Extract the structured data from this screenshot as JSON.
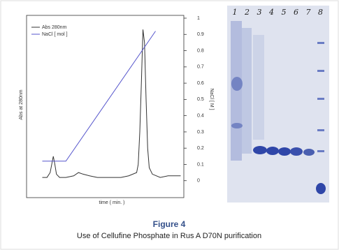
{
  "chart_data": {
    "type": "line",
    "x_label": "time ( min. )",
    "y_label": "Abs at 280nm",
    "y2_label": "NaCl [ M ]",
    "xlim": [
      0,
      100
    ],
    "ylim": [
      -0.1,
      1
    ],
    "yticks": [
      0,
      0.1,
      0.2,
      0.3,
      0.4,
      0.5,
      0.6,
      0.7,
      0.8,
      0.9,
      1
    ],
    "series": [
      {
        "name": "Abs 280nm",
        "color": "#333333",
        "x": [
          10,
          13,
          15,
          16,
          17,
          18,
          19,
          21,
          25,
          30,
          33,
          36,
          40,
          45,
          50,
          55,
          60,
          65,
          70,
          71,
          72,
          73,
          74,
          75,
          76,
          77,
          78,
          80,
          85,
          90,
          98
        ],
        "values": [
          0.02,
          0.02,
          0.05,
          0.1,
          0.15,
          0.1,
          0.04,
          0.02,
          0.02,
          0.03,
          0.05,
          0.04,
          0.03,
          0.02,
          0.02,
          0.02,
          0.02,
          0.03,
          0.05,
          0.1,
          0.3,
          0.6,
          0.93,
          0.85,
          0.5,
          0.2,
          0.08,
          0.04,
          0.02,
          0.03,
          0.03
        ]
      },
      {
        "name": "NaCl [ mol ]",
        "color": "#5555cc",
        "x": [
          10,
          25,
          82
        ],
        "values": [
          0.12,
          0.12,
          0.92
        ]
      }
    ]
  },
  "gel": {
    "lane_labels": [
      "1",
      "2",
      "3",
      "4",
      "5",
      "6",
      "7",
      "8"
    ]
  },
  "caption": {
    "title": "Figure 4",
    "text": "Use of Cellufine Phosphate in Rus A D70N purification"
  }
}
